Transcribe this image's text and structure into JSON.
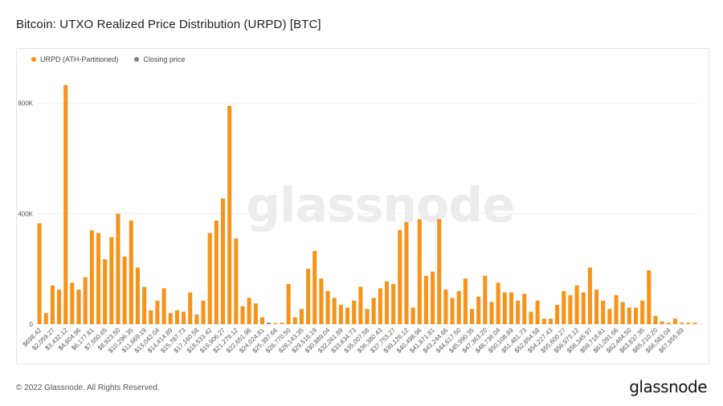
{
  "page": {
    "title": "Bitcoin: UTXO Realized Price Distribution (URPD) [BTC]",
    "watermark": "glassnode",
    "copyright": "© 2022 Glassnode. All Rights Reserved.",
    "brand": "glassnode"
  },
  "colors": {
    "series": "#f7931a",
    "closing": "#808080",
    "grid": "#f0f0f0",
    "axis_text": "#555555"
  },
  "chart_data": {
    "type": "bar",
    "title": "Bitcoin: UTXO Realized Price Distribution (URPD) [BTC]",
    "legend": [
      "URPD (ATH-Partitioned)",
      "Closing price"
    ],
    "legend_position": "top-left",
    "ylim": [
      0,
      880000
    ],
    "yticks": [
      "0",
      "400K",
      "800K"
    ],
    "ytick_values": [
      0,
      400000,
      800000
    ],
    "grid": true,
    "closing_index": 35,
    "xtick_labels": [
      "$698.42",
      "$2,059.27",
      "$3,432.12",
      "$4,804.96",
      "$6,177.81",
      "$7,550.65",
      "$8,923.50",
      "$10,296.35",
      "$11,669.19",
      "$13,042.04",
      "$14,414.89",
      "$15,787.73",
      "$17,160.58",
      "$18,533.42",
      "$19,906.27",
      "$21,279.12",
      "$22,651.96",
      "$24,024.81",
      "$25,397.66",
      "$26,770.50",
      "$28,143.35",
      "$29,516.19",
      "$30,889.04",
      "$32,261.89",
      "$33,634.73",
      "$35,007.58",
      "$36,380.43",
      "$37,753.27",
      "$39,126.12",
      "$40,498.96",
      "$41,871.81",
      "$43,244.66",
      "$44,617.50",
      "$45,990.35",
      "$47,363.20",
      "$48,736.04",
      "$50,108.89",
      "$51,481.73",
      "$52,854.58",
      "$54,227.43",
      "$55,600.27",
      "$56,973.12",
      "$58,345.97",
      "$59,718.81",
      "$61,091.66",
      "$62,464.50",
      "$63,837.35",
      "$65,210.20",
      "$66,583.04",
      "$67,955.89"
    ],
    "values": [
      365000,
      40000,
      140000,
      125000,
      865000,
      150000,
      125000,
      170000,
      340000,
      330000,
      235000,
      315000,
      400000,
      245000,
      375000,
      205000,
      135000,
      50000,
      85000,
      130000,
      40000,
      50000,
      45000,
      115000,
      35000,
      85000,
      330000,
      375000,
      455000,
      790000,
      310000,
      65000,
      95000,
      75000,
      25000,
      5000,
      3000,
      5000,
      145000,
      25000,
      55000,
      200000,
      265000,
      165000,
      120000,
      95000,
      70000,
      60000,
      85000,
      135000,
      55000,
      95000,
      130000,
      155000,
      145000,
      340000,
      370000,
      60000,
      380000,
      175000,
      190000,
      380000,
      125000,
      95000,
      120000,
      165000,
      55000,
      100000,
      175000,
      80000,
      150000,
      115000,
      115000,
      85000,
      110000,
      45000,
      85000,
      20000,
      20000,
      70000,
      120000,
      105000,
      140000,
      115000,
      205000,
      125000,
      85000,
      55000,
      105000,
      80000,
      60000,
      60000,
      85000,
      195000,
      30000,
      10000,
      5000,
      20000,
      5000,
      5000,
      5000
    ]
  }
}
